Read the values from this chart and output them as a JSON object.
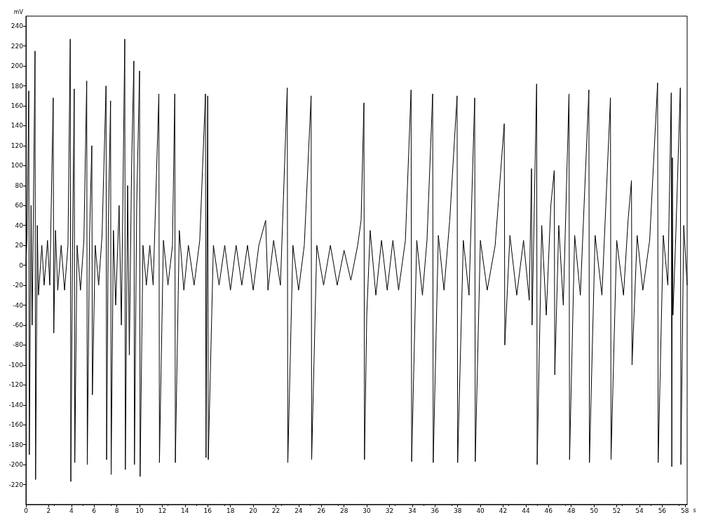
{
  "chart_data": {
    "type": "line",
    "xlabel": "s",
    "ylabel": "mV",
    "xlim": [
      0,
      58.2
    ],
    "ylim": [
      -240,
      250
    ],
    "xticks": [
      0,
      2,
      4,
      6,
      8,
      10,
      12,
      14,
      16,
      18,
      20,
      22,
      24,
      26,
      28,
      30,
      32,
      34,
      36,
      38,
      40,
      42,
      44,
      46,
      48,
      50,
      52,
      54,
      56,
      58
    ],
    "yticks": [
      -220,
      -200,
      -180,
      -160,
      -140,
      -120,
      -100,
      -80,
      -60,
      -40,
      -20,
      0,
      20,
      40,
      60,
      80,
      100,
      120,
      140,
      160,
      180,
      200,
      220,
      240
    ],
    "grid": false,
    "marker": "none",
    "line_style": "solid",
    "series": [
      {
        "color": "#000000",
        "x": [
          0,
          0.1,
          0.25,
          0.3,
          0.45,
          0.55,
          0.8,
          0.85,
          1.0,
          1.1,
          1.4,
          1.6,
          1.9,
          2.1,
          2.4,
          2.45,
          2.6,
          2.8,
          3.1,
          3.4,
          3.7,
          3.9,
          3.95,
          4.1,
          4.25,
          4.3,
          4.5,
          4.8,
          5.1,
          5.35,
          5.4,
          5.6,
          5.8,
          5.85,
          6.1,
          6.4,
          6.7,
          7.05,
          7.1,
          7.25,
          7.45,
          7.5,
          7.7,
          7.9,
          8.2,
          8.4,
          8.7,
          8.75,
          8.95,
          9.1,
          9.3,
          9.5,
          9.55,
          9.75,
          10.0,
          10.05,
          10.3,
          10.6,
          10.9,
          11.2,
          11.7,
          11.75,
          12.1,
          12.5,
          12.9,
          13.1,
          13.15,
          13.5,
          13.9,
          14.3,
          14.8,
          15.3,
          15.8,
          15.85,
          16.0,
          16.05,
          16.5,
          17.0,
          17.5,
          18.0,
          18.5,
          19.0,
          19.5,
          20.0,
          20.5,
          21.1,
          21.3,
          21.8,
          22.4,
          23.0,
          23.05,
          23.5,
          24.0,
          24.5,
          25.1,
          25.15,
          25.6,
          26.2,
          26.8,
          27.4,
          28.0,
          28.6,
          29.2,
          29.5,
          29.75,
          29.8,
          30.0,
          30.3,
          30.8,
          31.3,
          31.8,
          32.3,
          32.8,
          33.4,
          33.9,
          33.95,
          34.4,
          34.9,
          35.3,
          35.8,
          35.85,
          36.3,
          36.8,
          37.3,
          37.95,
          38.0,
          38.5,
          39.0,
          39.5,
          39.55,
          40.0,
          40.6,
          41.3,
          42.1,
          42.15,
          42.6,
          43.2,
          43.8,
          44.3,
          44.5,
          44.55,
          44.95,
          45.0,
          45.4,
          45.8,
          46.2,
          46.5,
          46.55,
          46.9,
          47.3,
          47.8,
          47.85,
          48.3,
          48.8,
          49.55,
          49.6,
          50.1,
          50.7,
          51.45,
          51.5,
          52.0,
          52.6,
          53.0,
          53.3,
          53.35,
          53.8,
          54.3,
          54.9,
          55.6,
          55.65,
          56.1,
          56.5,
          56.8,
          56.85,
          56.9,
          56.95,
          57.2,
          57.6,
          57.65,
          57.9,
          58.2
        ],
        "values": [
          0,
          30,
          175,
          -190,
          60,
          -60,
          215,
          -215,
          40,
          -30,
          20,
          -20,
          25,
          -20,
          168,
          -68,
          35,
          -25,
          20,
          -25,
          20,
          227,
          -217,
          15,
          177,
          -198,
          20,
          -25,
          25,
          185,
          -200,
          30,
          120,
          -130,
          20,
          -20,
          30,
          180,
          -195,
          40,
          165,
          -210,
          35,
          -40,
          60,
          -60,
          227,
          -205,
          80,
          -90,
          100,
          205,
          -200,
          60,
          195,
          -212,
          20,
          -20,
          20,
          -20,
          172,
          -198,
          25,
          -20,
          20,
          172,
          -198,
          35,
          -25,
          20,
          -20,
          25,
          172,
          -193,
          170,
          -195,
          20,
          -20,
          20,
          -25,
          20,
          -20,
          20,
          -25,
          20,
          45,
          -25,
          25,
          -20,
          178,
          -198,
          20,
          -25,
          20,
          170,
          -195,
          20,
          -20,
          20,
          -20,
          15,
          -15,
          20,
          45,
          163,
          -195,
          -50,
          35,
          -30,
          25,
          -25,
          25,
          -25,
          25,
          176,
          -197,
          25,
          -30,
          25,
          172,
          -198,
          30,
          -25,
          45,
          170,
          -198,
          25,
          -30,
          168,
          -197,
          25,
          -25,
          20,
          142,
          -80,
          30,
          -30,
          25,
          -35,
          97,
          -60,
          182,
          -200,
          40,
          -50,
          60,
          95,
          -110,
          40,
          -40,
          172,
          -195,
          30,
          -30,
          176,
          -198,
          30,
          -30,
          168,
          -195,
          25,
          -30,
          45,
          85,
          -100,
          30,
          -25,
          25,
          183,
          -198,
          30,
          -20,
          173,
          -202,
          108,
          -50,
          30,
          178,
          -200,
          40,
          -20
        ]
      }
    ]
  }
}
